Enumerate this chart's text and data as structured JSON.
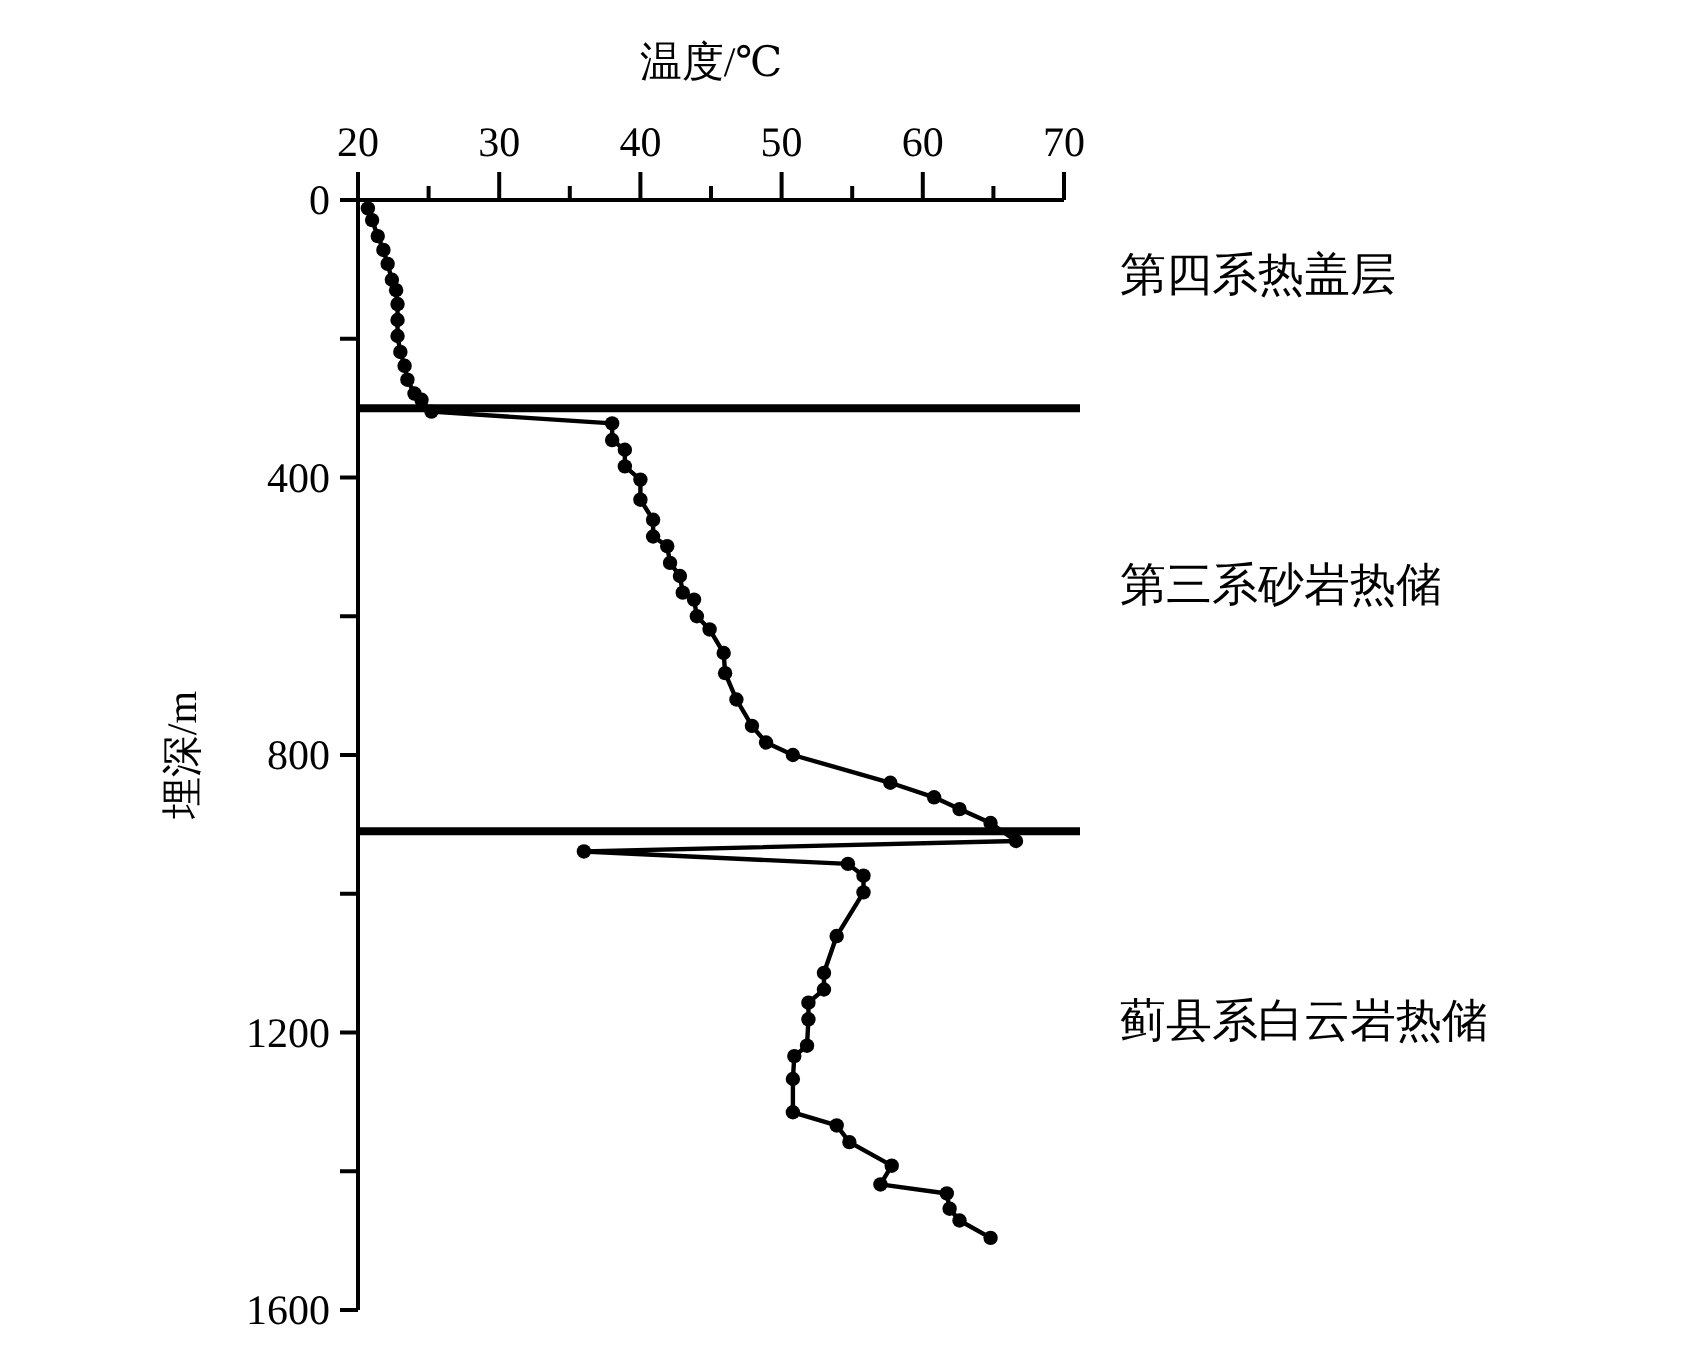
{
  "chart_data": {
    "type": "line",
    "xlabel": "温度/℃",
    "ylabel": "埋深/m",
    "x": [
      20.7,
      21.0,
      21.4,
      21.8,
      22.1,
      22.4,
      22.7,
      22.8,
      22.8,
      22.8,
      23.0,
      23.3,
      23.5,
      24.0,
      24.5,
      25.2,
      38.0,
      38.0,
      38.9,
      38.9,
      40.0,
      40.0,
      40.9,
      40.9,
      41.9,
      42.1,
      42.8,
      43.0,
      43.8,
      44.0,
      44.9,
      45.9,
      46.0,
      46.8,
      47.9,
      48.9,
      50.8,
      57.7,
      60.8,
      62.6,
      64.8,
      66.6,
      36.0,
      54.7,
      55.8,
      55.8,
      53.9,
      53.0,
      53.0,
      51.9,
      51.9,
      51.8,
      50.9,
      50.8,
      50.8,
      53.9,
      54.8,
      57.8,
      57.0,
      61.7,
      61.9,
      62.6,
      64.8
    ],
    "series": [
      {
        "color": "#000000",
        "values": [
          12,
          29,
          52,
          72,
          92,
          115,
          130,
          150,
          173,
          196,
          219,
          239,
          259,
          279,
          288,
          305,
          322,
          346,
          360,
          384,
          403,
          432,
          461,
          485,
          499,
          523,
          542,
          566,
          576,
          600,
          619,
          653,
          682,
          720,
          758,
          782,
          800,
          840,
          861,
          878,
          898,
          924,
          939,
          957,
          974,
          998,
          1061,
          1114,
          1138,
          1157,
          1181,
          1219,
          1234,
          1267,
          1315,
          1334,
          1358,
          1392,
          1419,
          1432,
          1454,
          1471,
          1496
        ]
      }
    ],
    "xlim": [
      20,
      70
    ],
    "xticks": [
      20,
      {
        "value": 25,
        "label": null
      },
      30,
      {
        "value": 35,
        "label": null
      },
      40,
      {
        "value": 45,
        "label": null
      },
      50,
      {
        "value": 55,
        "label": null
      },
      60,
      {
        "value": 65,
        "label": null
      },
      70
    ],
    "ylim": [
      1600,
      0
    ],
    "yticks": [
      0,
      {
        "value": 200,
        "label": null
      },
      400,
      {
        "value": 600,
        "label": null
      },
      800,
      {
        "value": 1000,
        "label": null
      },
      1200,
      {
        "value": 1400,
        "label": null
      },
      1600
    ],
    "ref_lines": [
      {
        "axis": "y",
        "value": 300,
        "color": "#000000"
      },
      {
        "axis": "y",
        "value": 910,
        "color": "#000000"
      }
    ],
    "annotations": [
      "第四系热盖层",
      "第三系砂岩热储",
      "蓟县系白云岩热储"
    ],
    "marker": "circle",
    "line_style": "solid",
    "grid": false
  }
}
